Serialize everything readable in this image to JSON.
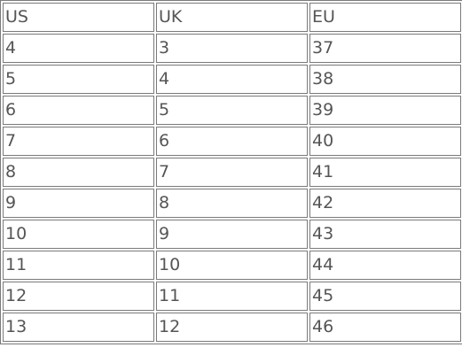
{
  "table": {
    "headers": [
      "US",
      "UK",
      "EU"
    ],
    "rows": [
      [
        "4",
        "3",
        "37"
      ],
      [
        "5",
        "4",
        "38"
      ],
      [
        "6",
        "5",
        "39"
      ],
      [
        "7",
        "6",
        "40"
      ],
      [
        "8",
        "7",
        "41"
      ],
      [
        "9",
        "8",
        "42"
      ],
      [
        "10",
        "9",
        "43"
      ],
      [
        "11",
        "10",
        "44"
      ],
      [
        "12",
        "11",
        "45"
      ],
      [
        "13",
        "12",
        "46"
      ]
    ]
  }
}
